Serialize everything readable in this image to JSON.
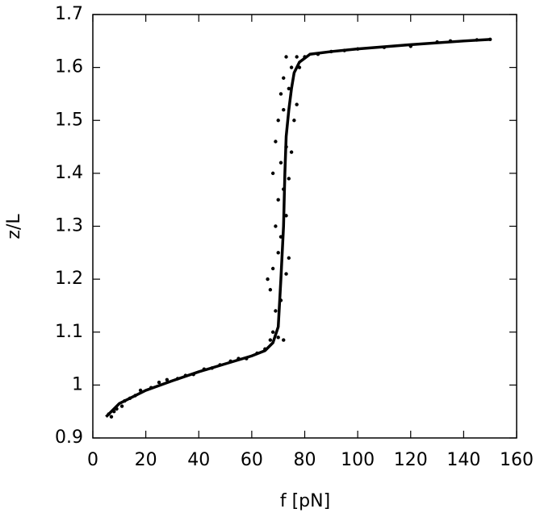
{
  "chart_data": {
    "type": "scatter",
    "xlabel": "f [pN]",
    "ylabel": "z/L",
    "xlim": [
      0,
      160
    ],
    "ylim": [
      0.9,
      1.7
    ],
    "xticks": [
      0,
      20,
      40,
      60,
      80,
      100,
      120,
      140,
      160
    ],
    "yticks": [
      0.9,
      1,
      1.1,
      1.2,
      1.3,
      1.4,
      1.5,
      1.6,
      1.7
    ],
    "series": [
      {
        "type": "scatter",
        "color": "#000000",
        "x": [
          6,
          7,
          8,
          9,
          11,
          12,
          14,
          16,
          18,
          22,
          25,
          28,
          32,
          35,
          38,
          42,
          45,
          48,
          52,
          55,
          58,
          62,
          65,
          67,
          68,
          70,
          72,
          69,
          67,
          71,
          68,
          73,
          70,
          66,
          74,
          71,
          69,
          73,
          70,
          72,
          68,
          74,
          71,
          73,
          69,
          75,
          70,
          72,
          76,
          71,
          74,
          77,
          72,
          75,
          73,
          77,
          78,
          80,
          85,
          90,
          95,
          100,
          110,
          120,
          130,
          135,
          145,
          150
        ],
        "values": [
          0.945,
          0.94,
          0.95,
          0.955,
          0.96,
          0.97,
          0.975,
          0.98,
          0.99,
          0.995,
          1.005,
          1.01,
          1.012,
          1.018,
          1.02,
          1.03,
          1.032,
          1.038,
          1.045,
          1.05,
          1.05,
          1.06,
          1.068,
          1.085,
          1.1,
          1.09,
          1.085,
          1.14,
          1.18,
          1.16,
          1.22,
          1.21,
          1.25,
          1.2,
          1.24,
          1.28,
          1.3,
          1.32,
          1.35,
          1.37,
          1.4,
          1.39,
          1.42,
          1.45,
          1.46,
          1.44,
          1.5,
          1.52,
          1.5,
          1.55,
          1.56,
          1.53,
          1.58,
          1.6,
          1.62,
          1.62,
          1.6,
          1.62,
          1.625,
          1.63,
          1.632,
          1.635,
          1.638,
          1.64,
          1.648,
          1.65,
          1.652,
          1.653
        ]
      },
      {
        "type": "line",
        "color": "#000000",
        "x": [
          5,
          10,
          20,
          30,
          40,
          50,
          60,
          65,
          68,
          70,
          71,
          72,
          72.5,
          73,
          74,
          75,
          76,
          78,
          82,
          90,
          100,
          120,
          140,
          150
        ],
        "values": [
          0.94,
          0.965,
          0.99,
          1.008,
          1.025,
          1.04,
          1.055,
          1.065,
          1.08,
          1.11,
          1.2,
          1.3,
          1.4,
          1.47,
          1.52,
          1.56,
          1.59,
          1.61,
          1.625,
          1.63,
          1.635,
          1.643,
          1.65,
          1.653
        ]
      }
    ]
  }
}
